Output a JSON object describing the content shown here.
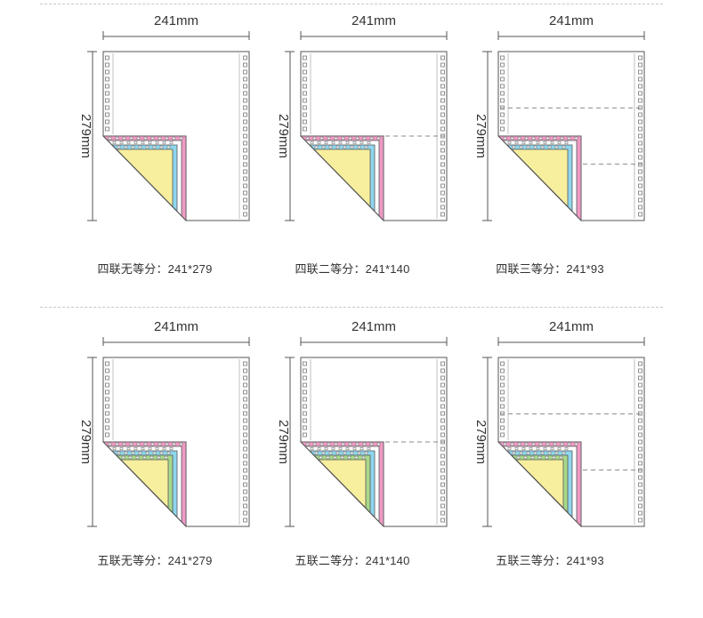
{
  "width_label": "241mm",
  "height_label": "279mm",
  "colors": {
    "line": "#555555",
    "dash": "#8a8a8a",
    "pink": "#ef9ac4",
    "blue": "#8fd6ee",
    "green": "#a8d98a",
    "yellow": "#f7ef9e",
    "white": "#ffffff"
  },
  "rows": [
    {
      "plies": 4,
      "panels": [
        {
          "caption": "四联无等分：241*279",
          "parts": 1
        },
        {
          "caption": "四联二等分：241*140",
          "parts": 2
        },
        {
          "caption": "四联三等分：241*93",
          "parts": 3
        }
      ]
    },
    {
      "plies": 5,
      "panels": [
        {
          "caption": "五联无等分：241*279",
          "parts": 1
        },
        {
          "caption": "五联二等分：241*140",
          "parts": 2
        },
        {
          "caption": "五联三等分：241*93",
          "parts": 3
        }
      ]
    }
  ]
}
